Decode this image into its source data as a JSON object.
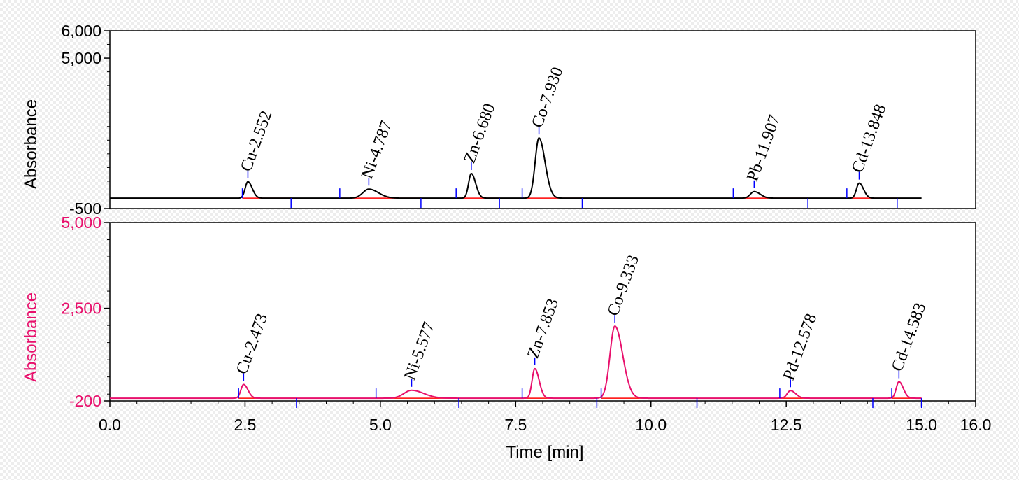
{
  "colors": {
    "panel_top_line": "#000000",
    "panel_bottom_line": "#e8106c",
    "panel_bottom_axis_text": "#e8106c",
    "baseline": "#ff0000",
    "integration_marker": "#0000ff"
  },
  "chart_data": [
    {
      "type": "line",
      "title": "",
      "ylabel": "Absorbance",
      "xlabel": "",
      "xlim": [
        0,
        16
      ],
      "ylim": [
        -500,
        6000
      ],
      "x_tick_labels": [],
      "y_tick_labels": [
        "6,000",
        "5,000",
        "-500"
      ],
      "y_ticks": [
        6000,
        5000,
        -500
      ],
      "baseline": -120,
      "x_end": 15.0,
      "peaks": [
        {
          "label": "Cu-2.552",
          "rt": 2.552,
          "height": 600,
          "width": 0.05,
          "start": 2.45,
          "end": 3.35
        },
        {
          "label": "Ni-4.787",
          "rt": 4.787,
          "height": 330,
          "width": 0.11,
          "start": 4.25,
          "end": 5.75
        },
        {
          "label": "Zn-6.680",
          "rt": 6.68,
          "height": 900,
          "width": 0.05,
          "start": 6.4,
          "end": 7.2
        },
        {
          "label": "Co-7.930",
          "rt": 7.93,
          "height": 2200,
          "width": 0.07,
          "start": 7.62,
          "end": 8.73
        },
        {
          "label": "Pb-11.907",
          "rt": 11.907,
          "height": 240,
          "width": 0.07,
          "start": 11.52,
          "end": 12.9
        },
        {
          "label": "Cd-13.848",
          "rt": 13.848,
          "height": 550,
          "width": 0.05,
          "start": 13.62,
          "end": 14.55
        }
      ]
    },
    {
      "type": "line",
      "title": "",
      "ylabel": "Absorbance",
      "xlabel": "Time [min]",
      "xlim": [
        0,
        16
      ],
      "ylim": [
        -200,
        5000
      ],
      "x_ticks": [
        0,
        2.5,
        5,
        7.5,
        10,
        12.5,
        15,
        16
      ],
      "x_tick_labels": [
        "0.0",
        "2.5",
        "5.0",
        "7.5",
        "10.0",
        "12.5",
        "15.0",
        "16.0"
      ],
      "y_ticks": [
        5000,
        2500,
        -200
      ],
      "y_tick_labels": [
        "5,000",
        "2,500",
        "-200"
      ],
      "baseline": -120,
      "x_end": 15.0,
      "peaks": [
        {
          "label": "Cu-2.473",
          "rt": 2.473,
          "height": 400,
          "width": 0.05,
          "start": 2.38,
          "end": 3.45
        },
        {
          "label": "Ni-5.577",
          "rt": 5.577,
          "height": 230,
          "width": 0.14,
          "start": 4.92,
          "end": 6.45
        },
        {
          "label": "Zn-7.853",
          "rt": 7.853,
          "height": 860,
          "width": 0.05,
          "start": 7.62,
          "end": 9.0
        },
        {
          "label": "Co-9.333",
          "rt": 9.333,
          "height": 2100,
          "width": 0.09,
          "start": 9.08,
          "end": 10.85
        },
        {
          "label": "Pd-12.578",
          "rt": 12.578,
          "height": 220,
          "width": 0.06,
          "start": 12.38,
          "end": 14.1
        },
        {
          "label": "Cd-14.583",
          "rt": 14.583,
          "height": 480,
          "width": 0.05,
          "start": 14.45,
          "end": 15.0
        }
      ]
    }
  ]
}
